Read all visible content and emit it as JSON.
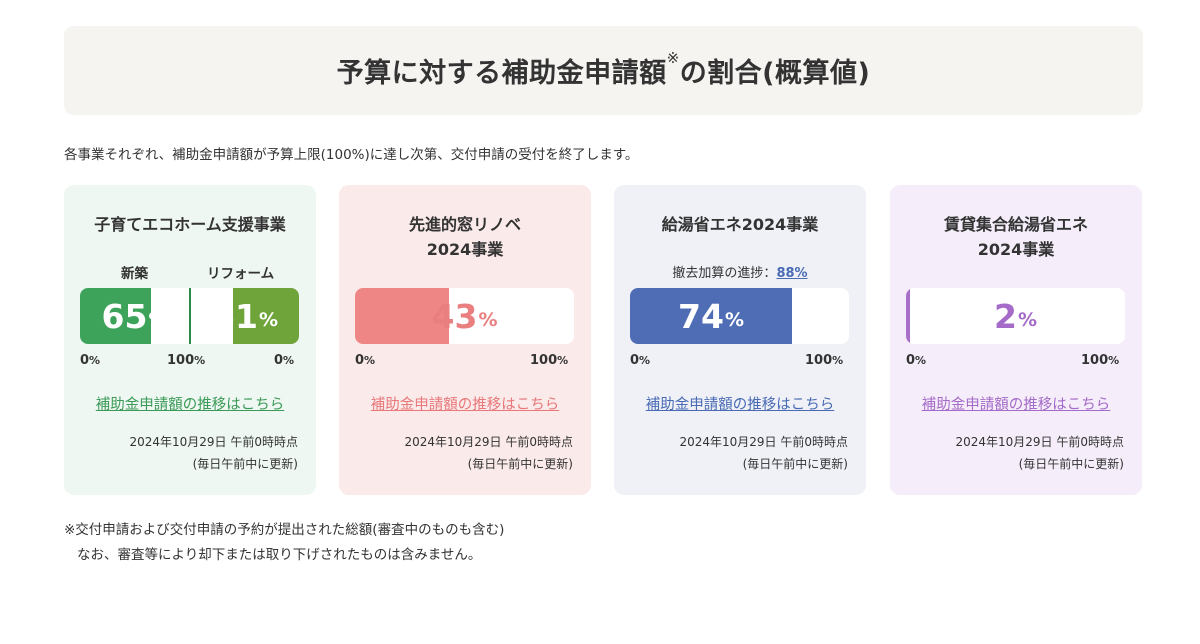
{
  "header": {
    "title": "予算に対する補助金申請額",
    "title_mark": "※",
    "title_suffix": "の割合(概算値)"
  },
  "intro": "各事業それぞれ、補助金申請額が予算上限(100%)に達し次第、交付申請の受付を終了します。",
  "cards": [
    {
      "title_line1": "子育てエコホーム支援事業",
      "bg": "#eef7f1",
      "bars": [
        {
          "label": "新築",
          "percent": 65,
          "unit": "%",
          "color": "#3da35a",
          "label_color": "#3c9a58"
        },
        {
          "label": "リフォーム",
          "percent": 61,
          "unit": "%",
          "color": "#6fa43a",
          "label_color": "#5e9a2e"
        }
      ],
      "tick_left": "0",
      "tick_mid": "100",
      "tick_right": "0",
      "tick_unit": "%",
      "link": "補助金申請額の推移はこちら",
      "link_color": "#3c9a58",
      "date": "2024年10月29日 午前0時時点",
      "update": "(毎日午前中に更新)"
    },
    {
      "title_line1": "先進的窓リノベ",
      "title_line2": "2024事業",
      "bg": "#fbeaea",
      "bar": {
        "percent": 43,
        "unit": "%",
        "color": "#ef8686",
        "text_color": "#ea7f80"
      },
      "tick_left": "0",
      "tick_right": "100",
      "tick_unit": "%",
      "link": "補助金申請額の推移はこちら",
      "link_color": "#e8787a",
      "date": "2024年10月29日 午前0時時点",
      "update": "(毎日午前中に更新)"
    },
    {
      "title_line1": "給湯省エネ2024事業",
      "bg": "#eff1f7",
      "progress_label": "撤去加算の進捗：",
      "progress_value": "88%",
      "bar": {
        "percent": 74,
        "unit": "%",
        "color": "#4e6db5",
        "text_color": "#ffffff"
      },
      "tick_left": "0",
      "tick_right": "100",
      "tick_unit": "%",
      "link": "補助金申請額の推移はこちら",
      "link_color": "#4a6bb4",
      "date": "2024年10月29日 午前0時時点",
      "update": "(毎日午前中に更新)"
    },
    {
      "title_line1": "賃貸集合給湯省エネ",
      "title_line2": "2024事業",
      "bg": "#f5eefa",
      "bar": {
        "percent": 2,
        "unit": "%",
        "color": "#a86fc9",
        "text_color": "#a56bc8"
      },
      "tick_left": "0",
      "tick_right": "100",
      "tick_unit": "%",
      "link": "補助金申請額の推移はこちら",
      "link_color": "#a56bc8",
      "date": "2024年10月29日 午前0時時点",
      "update": "(毎日午前中に更新)"
    }
  ],
  "footnote": {
    "line1": "※交付申請および交付申請の予約が提出された総額(審査中のものも含む)",
    "line2": "なお、審査等により却下または取り下げされたものは含みません。"
  }
}
